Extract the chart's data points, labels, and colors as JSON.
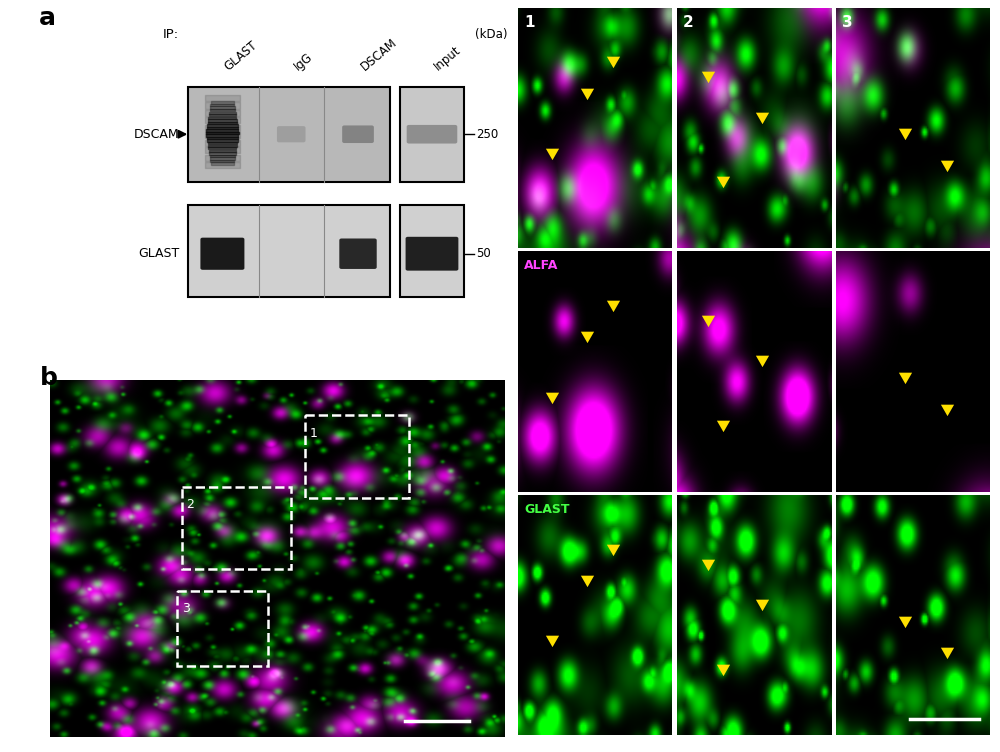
{
  "panel_a_label": "a",
  "panel_b_label": "b",
  "ip_label": "IP:",
  "ip_cols": [
    "GLAST",
    "IgG",
    "DSCAM",
    "Input"
  ],
  "kda_label": "(kDa)",
  "kda_250": "250",
  "kda_50": "50",
  "row_labels_a": [
    "DSCAM",
    "GLAST"
  ],
  "alfa_label": "ALFA",
  "glast_label": "GLAST",
  "arrow_color": "#FFE000",
  "bg_color": "#ffffff",
  "fig_width": 10.0,
  "fig_height": 7.52,
  "num_labels": [
    "1",
    "2",
    "3"
  ],
  "row_channel_colors": [
    "#ffffff",
    "#FF44FF",
    "#44FF44"
  ]
}
